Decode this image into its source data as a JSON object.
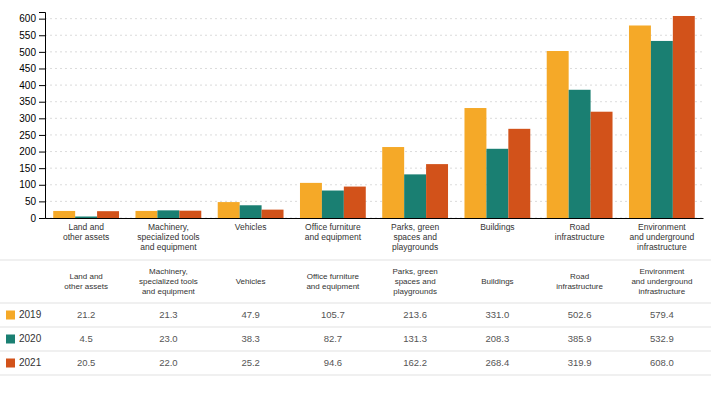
{
  "chart_data": {
    "type": "bar",
    "categories": [
      "Land and\nother assets",
      "Machinery,\nspecialized tools\nand equipment",
      "Vehicles",
      "Office furniture\nand equipment",
      "Parks, green\nspaces and\nplaygrounds",
      "Buildings",
      "Road\ninfrastructure",
      "Environment\nand underground\ninfrastructure"
    ],
    "series": [
      {
        "name": "2019",
        "color": "#F5A928",
        "values": [
          21.2,
          21.3,
          47.9,
          105.7,
          213.6,
          331.0,
          502.6,
          579.4
        ],
        "value_labels": [
          "21.2",
          "21.3",
          "47.9",
          "105.7",
          "213.6",
          "331.0",
          "502.6",
          "579.4"
        ]
      },
      {
        "name": "2020",
        "color": "#1A7F72",
        "values": [
          4.5,
          23.0,
          38.3,
          82.7,
          131.3,
          208.3,
          385.9,
          532.9
        ],
        "value_labels": [
          "4.5",
          "23.0",
          "38.3",
          "82.7",
          "131.3",
          "208.3",
          "385.9",
          "532.9"
        ]
      },
      {
        "name": "2021",
        "color": "#D2521A",
        "values": [
          20.5,
          22.0,
          25.2,
          94.6,
          162.2,
          268.4,
          319.9,
          608.0
        ],
        "value_labels": [
          "20.5",
          "22.0",
          "25.2",
          "94.6",
          "162.2",
          "268.4",
          "319.9",
          "608.0"
        ]
      }
    ],
    "ylim": [
      0,
      620
    ],
    "yticks": [
      0,
      50,
      100,
      150,
      200,
      250,
      300,
      350,
      400,
      450,
      500,
      550,
      600
    ],
    "grid": true,
    "legend": "bottom",
    "data_labels": true
  }
}
